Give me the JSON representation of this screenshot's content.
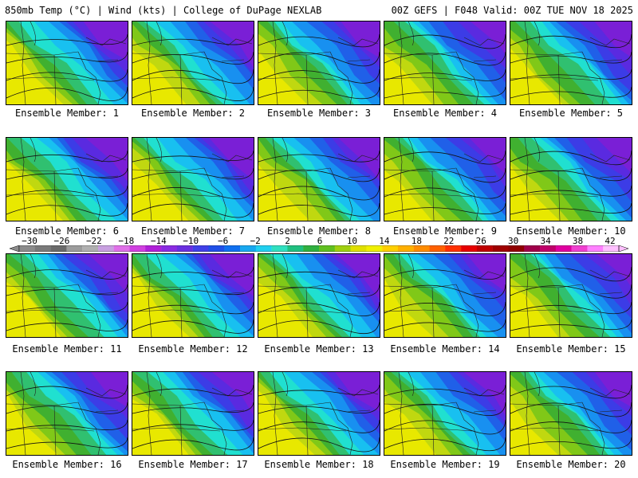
{
  "header": {
    "left_title": "850mb Temp (°C) | Wind (kts) | College of DuPage NEXLAB",
    "right_title": "00Z GEFS | F048 Valid: 00Z TUE NOV 18 2025"
  },
  "colorbar": {
    "labels": [
      "-30",
      "-26",
      "-22",
      "-18",
      "-14",
      "-10",
      "-6",
      "-2",
      "2",
      "6",
      "10",
      "14",
      "18",
      "22",
      "26",
      "30",
      "34",
      "38",
      "42"
    ],
    "colors": [
      "#8c8c8c",
      "#7a7a7a",
      "#6a6a6a",
      "#9c9c9c",
      "#b0b0b0",
      "#c8a0e0",
      "#e070e8",
      "#d040e0",
      "#b020d8",
      "#8a2be2",
      "#6a2fe0",
      "#4040e8",
      "#2050e8",
      "#1070f0",
      "#18a8f0",
      "#20d0f0",
      "#30e0c0",
      "#20c080",
      "#30b040",
      "#60c020",
      "#a0d010",
      "#e0e000",
      "#f0f000",
      "#ffd000",
      "#ffb000",
      "#ff8c00",
      "#ff6000",
      "#ff3000",
      "#e80000",
      "#c00000",
      "#a00000",
      "#900000",
      "#a0004a",
      "#c0006a",
      "#e000a0",
      "#f040d0",
      "#ff80ff",
      "#ffc0ff"
    ]
  },
  "members": [
    {
      "label": "Ensemble Member: 1",
      "n": 1
    },
    {
      "label": "Ensemble Member: 2",
      "n": 2
    },
    {
      "label": "Ensemble Member: 3",
      "n": 3
    },
    {
      "label": "Ensemble Member: 4",
      "n": 4
    },
    {
      "label": "Ensemble Member: 5",
      "n": 5
    },
    {
      "label": "Ensemble Member: 6",
      "n": 6
    },
    {
      "label": "Ensemble Member: 7",
      "n": 7
    },
    {
      "label": "Ensemble Member: 8",
      "n": 8
    },
    {
      "label": "Ensemble Member: 9",
      "n": 9
    },
    {
      "label": "Ensemble Member: 10",
      "n": 10
    },
    {
      "label": "Ensemble Member: 11",
      "n": 11
    },
    {
      "label": "Ensemble Member: 12",
      "n": 12
    },
    {
      "label": "Ensemble Member: 13",
      "n": 13
    },
    {
      "label": "Ensemble Member: 14",
      "n": 14
    },
    {
      "label": "Ensemble Member: 15",
      "n": 15
    },
    {
      "label": "Ensemble Member: 16",
      "n": 16
    },
    {
      "label": "Ensemble Member: 17",
      "n": 17
    },
    {
      "label": "Ensemble Member: 18",
      "n": 18
    },
    {
      "label": "Ensemble Member: 19",
      "n": 19
    },
    {
      "label": "Ensemble Member: 20",
      "n": 20
    }
  ]
}
